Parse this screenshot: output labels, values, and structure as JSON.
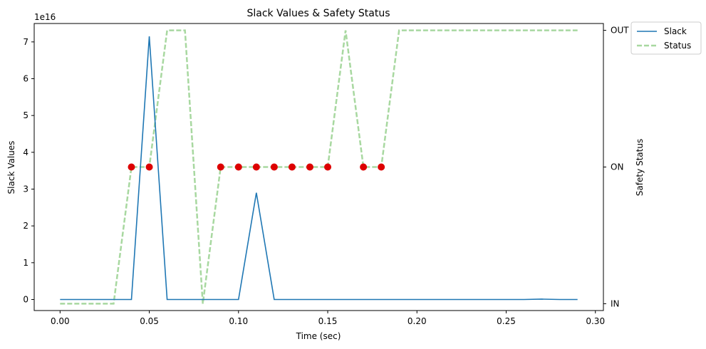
{
  "chart_data": {
    "type": "line",
    "title": "Slack Values & Safety Status",
    "xlabel": "Time (sec)",
    "ylabel": "Slack Values",
    "y2label": "Safety Status",
    "y_offset_label": "1e16",
    "xlim": [
      -0.0145,
      0.3045
    ],
    "ylim": [
      -3000000000000000.0,
      7.5e+16
    ],
    "x_ticks": [
      0.0,
      0.05,
      0.1,
      0.15,
      0.2,
      0.25,
      0.3
    ],
    "x_tick_labels": [
      "0.00",
      "0.05",
      "0.10",
      "0.15",
      "0.20",
      "0.25",
      "0.30"
    ],
    "y_ticks": [
      0,
      1,
      2,
      3,
      4,
      5,
      6,
      7
    ],
    "y_tick_labels": [
      "0",
      "1",
      "2",
      "3",
      "4",
      "5",
      "6",
      "7"
    ],
    "y2_ticks": [
      0,
      1,
      2
    ],
    "y2_tick_labels": [
      "IN",
      "ON",
      "OUT"
    ],
    "y2lim": [
      -0.05,
      2.05
    ],
    "legend_position": "outside-top-right",
    "colors": {
      "slack": "#1f77b4",
      "status": "#a8d8a0",
      "markers": "#dd0000"
    },
    "series": [
      {
        "name": "Slack",
        "axis": "left",
        "style": "solid",
        "x": [
          0.0,
          0.01,
          0.02,
          0.03,
          0.04,
          0.05,
          0.06,
          0.07,
          0.08,
          0.09,
          0.1,
          0.11,
          0.12,
          0.13,
          0.14,
          0.15,
          0.16,
          0.17,
          0.18,
          0.19,
          0.2,
          0.21,
          0.22,
          0.23,
          0.24,
          0.25,
          0.26,
          0.27,
          0.28,
          0.29
        ],
        "y": [
          0,
          0,
          0,
          0,
          0,
          7.15e+16,
          0,
          0,
          0,
          0,
          0,
          2.9e+16,
          0,
          0,
          0,
          0,
          0,
          0,
          0,
          0,
          0,
          0,
          0,
          0,
          0,
          0,
          0,
          100000000000000.0,
          0,
          0
        ]
      },
      {
        "name": "Status",
        "axis": "right",
        "style": "dashed",
        "x": [
          0.0,
          0.01,
          0.02,
          0.03,
          0.04,
          0.05,
          0.06,
          0.07,
          0.08,
          0.09,
          0.1,
          0.11,
          0.12,
          0.13,
          0.14,
          0.15,
          0.16,
          0.17,
          0.18,
          0.19,
          0.2,
          0.21,
          0.22,
          0.23,
          0.24,
          0.25,
          0.26,
          0.27,
          0.28,
          0.29
        ],
        "y": [
          0,
          0,
          0,
          0,
          1,
          1,
          2,
          2,
          0,
          1,
          1,
          1,
          1,
          1,
          1,
          1,
          2,
          1,
          1,
          2,
          2,
          2,
          2,
          2,
          2,
          2,
          2,
          2,
          2,
          2
        ]
      }
    ],
    "markers": {
      "axis": "right",
      "x": [
        0.04,
        0.05,
        0.09,
        0.1,
        0.11,
        0.12,
        0.13,
        0.14,
        0.15,
        0.17,
        0.18
      ],
      "y": [
        1,
        1,
        1,
        1,
        1,
        1,
        1,
        1,
        1,
        1,
        1
      ]
    }
  }
}
